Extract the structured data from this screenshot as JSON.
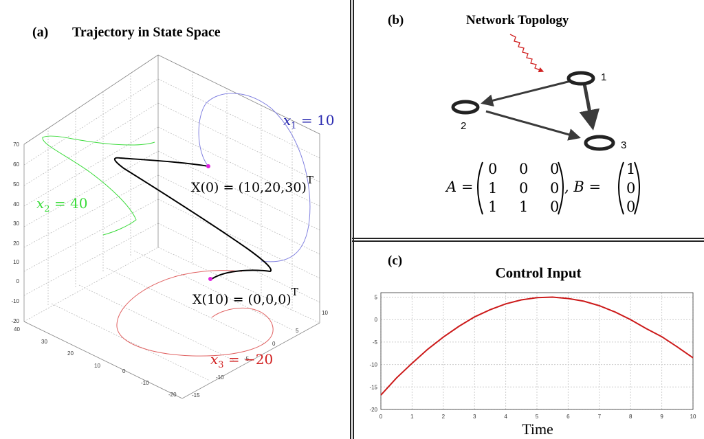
{
  "panel_a": {
    "letter": "(a)",
    "title": "Trajectory in State Space",
    "labels": {
      "x1": {
        "var": "x",
        "sub": "1",
        "rest": " = 10"
      },
      "x2": {
        "var": "x",
        "sub": "2",
        "rest": " = 40"
      },
      "x3": {
        "var": "x",
        "sub": "3",
        "rest": " = −20"
      },
      "start": {
        "text": "X(0) = (10,20,30)",
        "sup": "T"
      },
      "end": {
        "text": "X(10) = (0,0,0)",
        "sup": "T"
      }
    },
    "colors": {
      "x1": "#2a2ab0",
      "x2": "#3adb3a",
      "x3": "#d12020",
      "trajectory": "#000000",
      "points": "#e020e0"
    },
    "z_ticks": [
      "70",
      "60",
      "50",
      "40",
      "30",
      "20",
      "10",
      "0",
      "-10",
      "-20"
    ],
    "y_ticks": [
      "40",
      "30",
      "20",
      "10",
      "0",
      "-10",
      "-20"
    ],
    "x_ticks": [
      "10",
      "5",
      "0",
      "-5",
      "-10",
      "-15"
    ]
  },
  "panel_b": {
    "letter": "(b)",
    "title": "Network Topology",
    "nodes": [
      "1",
      "2",
      "3"
    ],
    "matrix_A_label": "A =",
    "matrix_A": [
      [
        "0",
        "0",
        "0"
      ],
      [
        "1",
        "0",
        "0"
      ],
      [
        "1",
        "1",
        "0"
      ]
    ],
    "matrix_B_label": ", B =",
    "matrix_B": [
      [
        "1"
      ],
      [
        "0"
      ],
      [
        "0"
      ]
    ],
    "colors": {
      "input": "#d02020",
      "edge": "#3a3a3a"
    }
  },
  "panel_c": {
    "letter": "(c)",
    "xlabel": "Time"
  },
  "chart_data": {
    "type": "line",
    "title": "Control Input",
    "xlabel": "Time",
    "ylabel": "",
    "x": [
      0,
      0.5,
      1,
      1.5,
      2,
      2.5,
      3,
      3.5,
      4,
      4.5,
      5,
      5.5,
      6,
      6.5,
      7,
      7.5,
      8,
      8.5,
      9,
      9.5,
      10
    ],
    "series": [
      {
        "values": [
          -16.8,
          -13.0,
          -9.7,
          -6.6,
          -3.9,
          -1.5,
          0.6,
          2.2,
          3.5,
          4.4,
          4.9,
          5.0,
          4.7,
          4.1,
          3.1,
          1.7,
          0.0,
          -2.0,
          -3.8,
          -6.1,
          -8.5
        ],
        "color": "#cc1a1a"
      }
    ],
    "xlim": [
      0,
      10
    ],
    "ylim": [
      -20,
      6
    ],
    "x_ticks": [
      "0",
      "1",
      "2",
      "3",
      "4",
      "5",
      "6",
      "7",
      "8",
      "9",
      "10"
    ],
    "y_ticks": [
      "5",
      "0",
      "-5",
      "-10",
      "-15",
      "-20"
    ],
    "grid": true
  }
}
